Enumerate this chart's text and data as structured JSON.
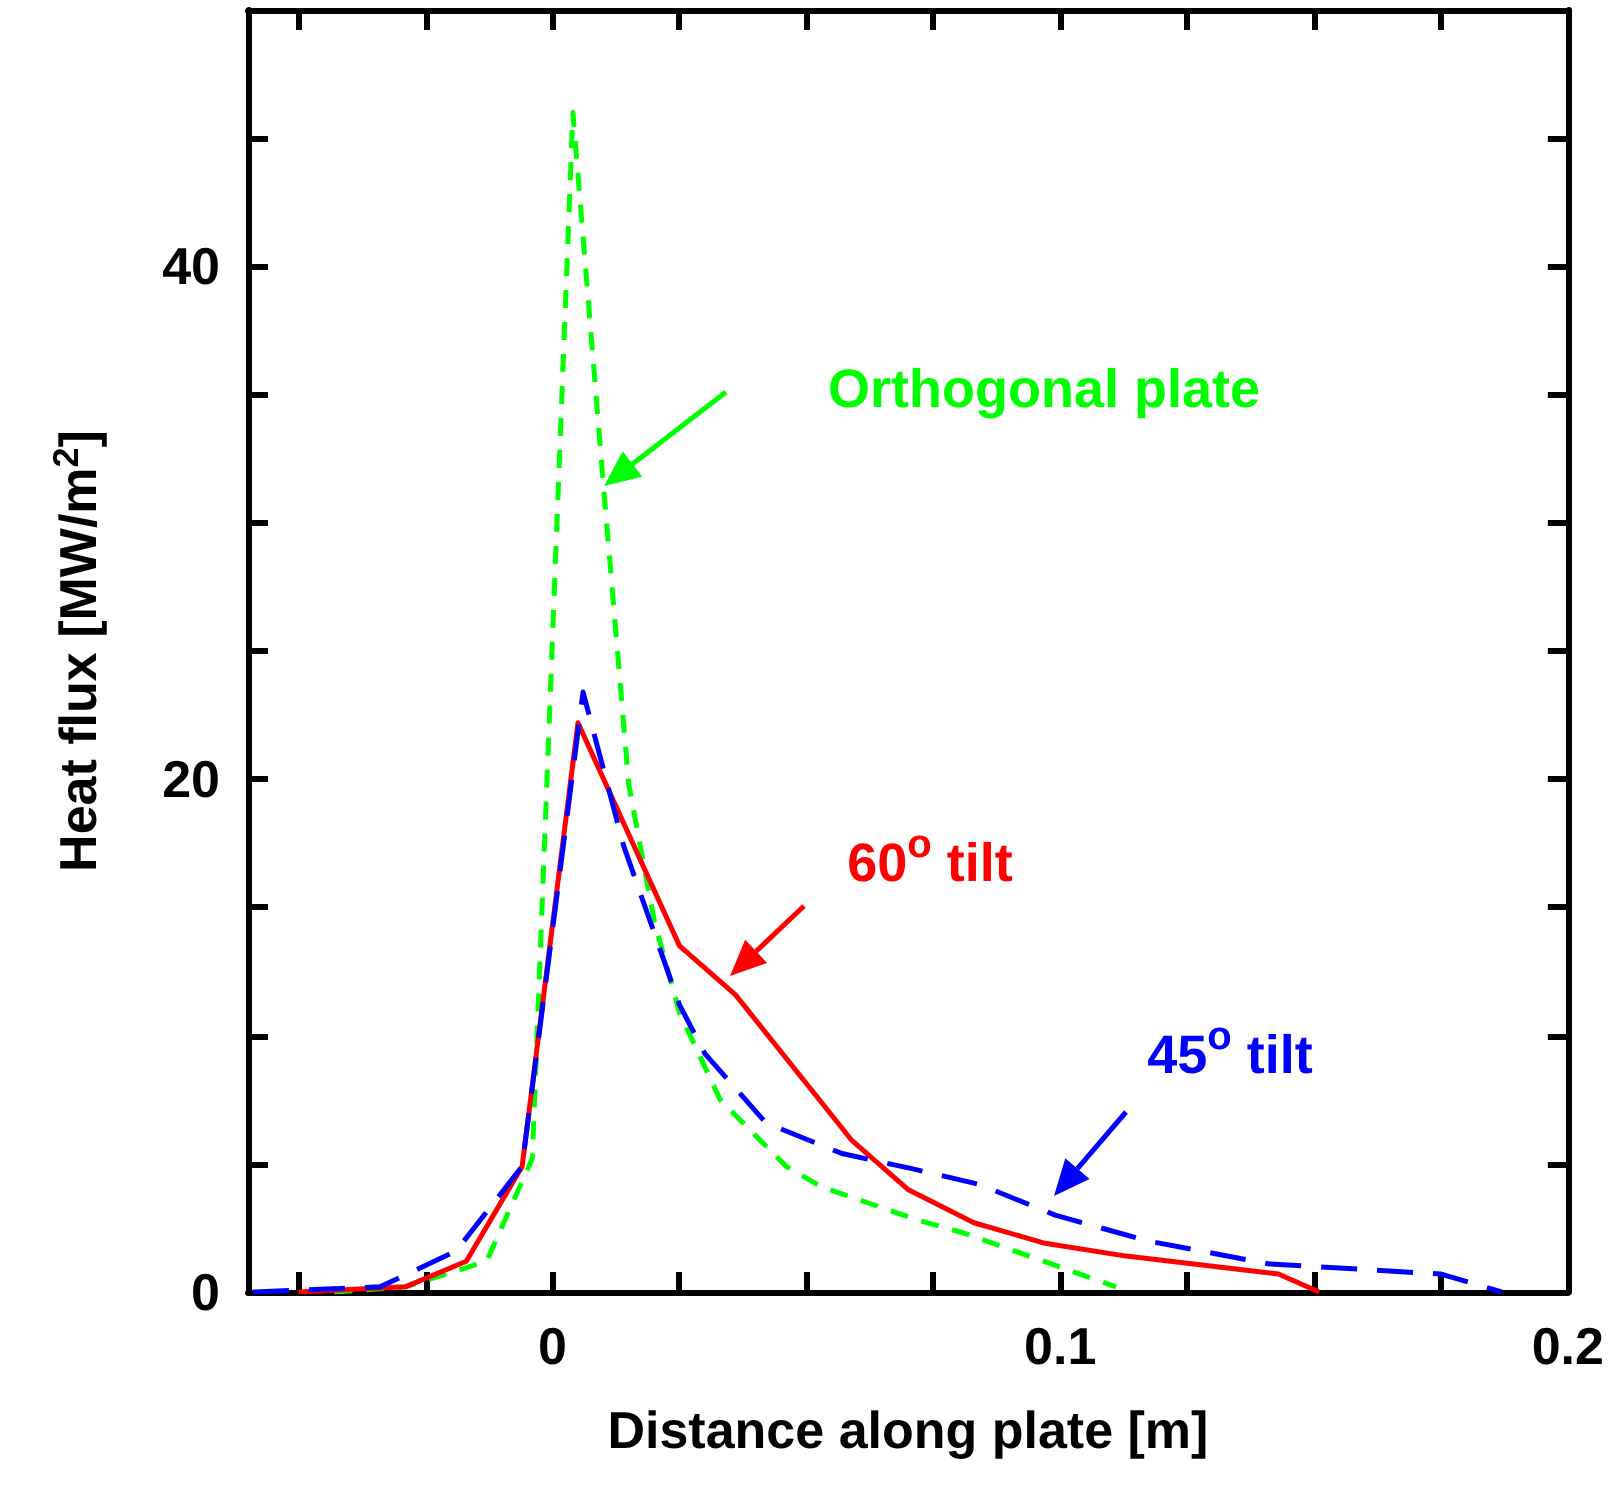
{
  "chart_data": {
    "type": "line",
    "xlabel": "Distance along plate [m]",
    "ylabel": "Heat flux [MW/m$^{2}$]",
    "xlim": [
      -0.06,
      0.2
    ],
    "xticks": [
      {
        "value": -0.05,
        "label": null
      },
      {
        "value": -0.025,
        "label": null
      },
      0,
      {
        "value": 0.025,
        "label": null
      },
      {
        "value": 0.05,
        "label": null
      },
      {
        "value": 0.075,
        "label": null
      },
      0.1,
      {
        "value": 0.125,
        "label": null
      },
      {
        "value": 0.15,
        "label": null
      },
      {
        "value": 0.175,
        "label": null
      },
      0.2
    ],
    "ylim": [
      0,
      50
    ],
    "yticks": [
      {
        "value": 5,
        "label": null
      },
      {
        "value": 10,
        "label": null
      },
      {
        "value": 15,
        "label": null
      },
      0,
      20,
      {
        "value": 25,
        "label": null
      },
      {
        "value": 30,
        "label": null
      },
      {
        "value": 35,
        "label": null
      },
      40,
      {
        "value": 45,
        "label": null
      }
    ],
    "grid": false,
    "marker": "none",
    "series": [
      {
        "color": "#00ff00",
        "line_style": "dotted",
        "x": [
          -0.043,
          -0.029,
          -0.013,
          -0.004,
          0.004,
          0.01,
          0.015,
          0.02,
          0.025,
          0.033,
          0.046,
          0.053,
          0.072,
          0.081,
          0.111
        ],
        "values": [
          0,
          0.2,
          1.2,
          5.2,
          46,
          31.5,
          19.8,
          14.5,
          10.9,
          7.5,
          4.9,
          4.1,
          2.8,
          2.3,
          0.2
        ]
      },
      {
        "color": "#ff0000",
        "line_style": "solid",
        "x": [
          -0.05,
          -0.029,
          -0.017,
          -0.006,
          0.005,
          0.025,
          0.036,
          0.059,
          0.07,
          0.083,
          0.097,
          0.113,
          0.143,
          0.151
        ],
        "values": [
          0,
          0.2,
          1.2,
          4.9,
          22.2,
          13.5,
          11.6,
          5.9,
          4.0,
          2.7,
          1.9,
          1.4,
          0.7,
          0
        ]
      },
      {
        "color": "#0000ff",
        "line_style": "dashed",
        "x": [
          -0.059,
          -0.034,
          -0.019,
          -0.006,
          0.006,
          0.014,
          0.025,
          0.03,
          0.042,
          0.057,
          0.071,
          0.084,
          0.099,
          0.117,
          0.141,
          0.175,
          0.187
        ],
        "values": [
          0,
          0.2,
          1.6,
          4.9,
          23.4,
          17.4,
          11.2,
          9.3,
          6.6,
          5.4,
          4.8,
          4.2,
          3.0,
          2.0,
          1.1,
          0.7,
          0
        ]
      }
    ],
    "annotations": [
      "Orthogonal plate",
      "60$^{o}$ tilt",
      "45$^{o}$ tilt"
    ]
  }
}
